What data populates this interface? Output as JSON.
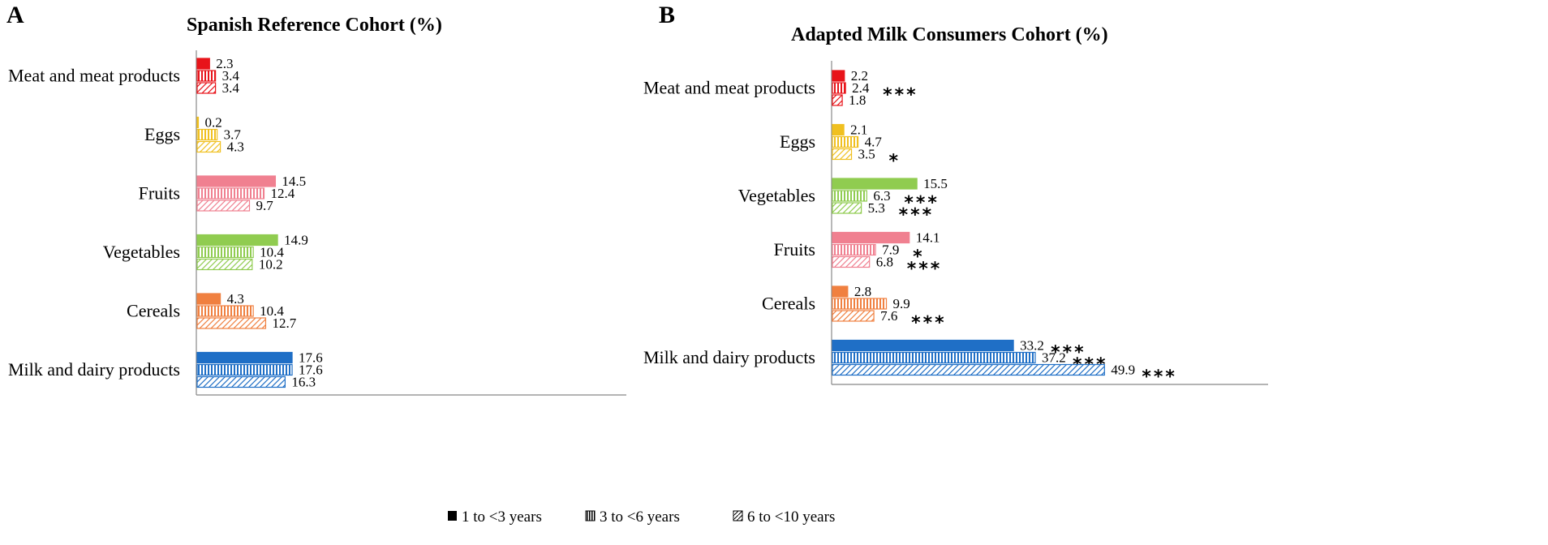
{
  "chart_data": [
    {
      "type": "bar",
      "orientation": "horizontal",
      "panel": "A",
      "title": "Spanish Reference Cohort (%)",
      "categories": [
        "Meat and meat products",
        "Eggs",
        "Fruits",
        "Vegetables",
        "Cereals",
        "Milk and dairy products"
      ],
      "colors": [
        "#e8141a",
        "#f0c020",
        "#f08090",
        "#90cc50",
        "#f08040",
        "#1f6fc6"
      ],
      "series": [
        {
          "name": "1 to <3 years",
          "values": [
            2.3,
            0.2,
            14.5,
            14.9,
            4.3,
            17.6
          ],
          "significance": [
            "",
            "",
            "",
            "",
            "",
            ""
          ]
        },
        {
          "name": "3 to <6 years",
          "values": [
            3.4,
            3.7,
            12.4,
            10.4,
            10.4,
            17.6
          ],
          "significance": [
            "",
            "",
            "",
            "",
            "",
            ""
          ]
        },
        {
          "name": "6 to <10 years",
          "values": [
            3.4,
            4.3,
            9.7,
            10.2,
            12.7,
            16.3
          ],
          "significance": [
            "",
            "",
            "",
            "",
            "",
            ""
          ]
        }
      ],
      "xlim": [
        0,
        78
      ]
    },
    {
      "type": "bar",
      "orientation": "horizontal",
      "panel": "B",
      "title": "Adapted Milk Consumers Cohort (%)",
      "categories": [
        "Meat and meat products",
        "Eggs",
        "Vegetables",
        "Fruits",
        "Cereals",
        "Milk and dairy products"
      ],
      "colors": [
        "#e8141a",
        "#f0c020",
        "#90cc50",
        "#f08090",
        "#f08040",
        "#1f6fc6"
      ],
      "series": [
        {
          "name": "1 to <3 years",
          "values": [
            2.2,
            2.1,
            15.5,
            14.1,
            2.8,
            33.2
          ],
          "significance": [
            "",
            "",
            "",
            "",
            "",
            "***"
          ]
        },
        {
          "name": "3 to <6 years",
          "values": [
            2.4,
            4.7,
            6.3,
            7.9,
            9.9,
            37.2
          ],
          "significance": [
            "***",
            "",
            "***",
            "*",
            "",
            "***"
          ]
        },
        {
          "name": "6 to <10 years",
          "values": [
            1.8,
            3.5,
            5.3,
            6.8,
            7.6,
            49.9
          ],
          "significance": [
            "",
            "*",
            "***",
            "***",
            "***",
            "***"
          ]
        }
      ],
      "xlim": [
        0,
        78
      ]
    }
  ],
  "legend": [
    {
      "symbol": "solid",
      "label": "1 to <3 years"
    },
    {
      "symbol": "vertical",
      "label": "3 to <6 years"
    },
    {
      "symbol": "diagonal",
      "label": "6 to <10 years"
    }
  ]
}
